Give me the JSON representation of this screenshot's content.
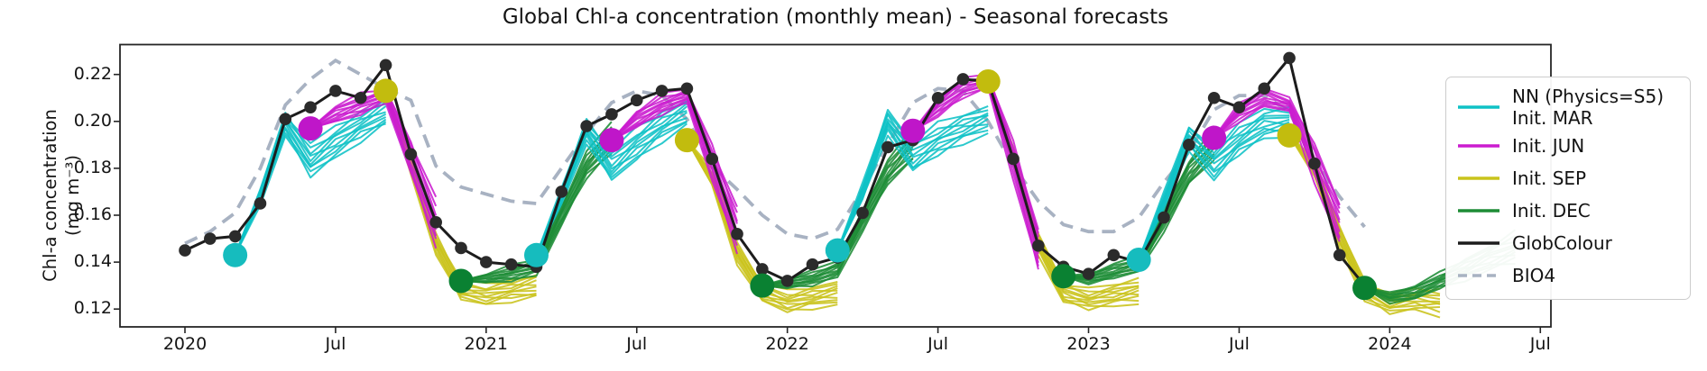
{
  "figure": {
    "title": "Global Chl-a concentration (monthly mean) - Seasonal forecasts",
    "ylabel_line1": "Chl-a concentration",
    "ylabel_line2": "(mg m⁻³)"
  },
  "chart_data": {
    "type": "line",
    "title": "Global Chl-a concentration (monthly mean) - Seasonal forecasts",
    "ylabel": "Chl-a concentration (mg m⁻³)",
    "ylim": [
      0.111,
      0.2335
    ],
    "grid": false,
    "legend_position": "right-outside",
    "yticks": [
      0.12,
      0.14,
      0.16,
      0.18,
      0.2,
      0.22
    ],
    "xticks": [
      {
        "label": "2020",
        "m": 0
      },
      {
        "label": "Jul",
        "m": 6
      },
      {
        "label": "2021",
        "m": 12
      },
      {
        "label": "Jul",
        "m": 18
      },
      {
        "label": "2022",
        "m": 24
      },
      {
        "label": "Jul",
        "m": 30
      },
      {
        "label": "2023",
        "m": 36
      },
      {
        "label": "Jul",
        "m": 42
      },
      {
        "label": "2024",
        "m": 48
      },
      {
        "label": "Jul",
        "m": 54
      }
    ],
    "months_note": "m = months since Jan 2020",
    "observations": {
      "name": "GlobColour",
      "color": "#1c1c1c",
      "dot_color": "#2b2b2b",
      "start_m": 0,
      "values": [
        0.145,
        0.15,
        0.151,
        0.165,
        0.201,
        0.206,
        0.213,
        0.21,
        0.224,
        0.186,
        0.157,
        0.146,
        0.14,
        0.139,
        0.138,
        0.17,
        0.198,
        0.203,
        0.209,
        0.213,
        0.214,
        0.184,
        0.152,
        0.137,
        0.132,
        0.139,
        0.142,
        0.161,
        0.189,
        0.192,
        0.21,
        0.218,
        0.217,
        0.184,
        0.147,
        0.138,
        0.135,
        0.143,
        0.14,
        0.159,
        0.19,
        0.21,
        0.206,
        0.214,
        0.227,
        0.182,
        0.143,
        0.13
      ]
    },
    "bio4": {
      "name": "BIO4",
      "color": "#a8b2c2",
      "style": "dashed",
      "start_m": 0,
      "values": [
        0.148,
        0.153,
        0.161,
        0.18,
        0.207,
        0.218,
        0.226,
        0.22,
        0.214,
        0.209,
        0.181,
        0.172,
        0.169,
        0.166,
        0.165,
        0.18,
        0.195,
        0.208,
        0.213,
        0.211,
        0.201,
        0.181,
        0.171,
        0.16,
        0.152,
        0.15,
        0.154,
        0.171,
        0.19,
        0.208,
        0.214,
        0.213,
        0.2,
        0.181,
        0.166,
        0.156,
        0.153,
        0.153,
        0.159,
        0.174,
        0.187,
        0.205,
        0.211,
        0.211,
        0.204,
        0.183,
        0.168,
        0.155
      ]
    },
    "forecast_groups": [
      {
        "name": "Init. MAR",
        "color": "#0fc2c6",
        "dot_color": "#16bcbe",
        "members": 10,
        "spread": [
          0,
          0.003,
          0.0045,
          0.0065,
          0.006,
          0.0055,
          0.0055
        ],
        "inits": [
          {
            "start_m": 2,
            "mean": [
              0.143,
              0.168,
              0.199,
              0.183,
              0.191,
              0.198,
              0.204
            ]
          },
          {
            "start_m": 14,
            "mean": [
              0.143,
              0.168,
              0.196,
              0.181,
              0.19,
              0.198,
              0.204
            ]
          },
          {
            "start_m": 26,
            "mean": [
              0.145,
              0.17,
              0.2,
              0.185,
              0.192,
              0.197,
              0.201
            ]
          },
          {
            "start_m": 38,
            "mean": [
              0.141,
              0.166,
              0.193,
              0.182,
              0.192,
              0.199,
              0.2
            ]
          }
        ]
      },
      {
        "name": "Init. JUN",
        "color": "#cb1ccf",
        "dot_color": "#bf16c9",
        "members": 10,
        "spread": [
          0,
          0.0035,
          0.004,
          0.0025,
          0.007,
          0.009
        ],
        "inits": [
          {
            "start_m": 5,
            "mean": [
              0.197,
              0.203,
              0.207,
              0.211,
              0.185,
              0.156
            ]
          },
          {
            "start_m": 17,
            "mean": [
              0.192,
              0.201,
              0.207,
              0.211,
              0.183,
              0.153
            ]
          },
          {
            "start_m": 29,
            "mean": [
              0.196,
              0.206,
              0.214,
              0.217,
              0.184,
              0.145
            ]
          },
          {
            "start_m": 41,
            "mean": [
              0.193,
              0.204,
              0.21,
              0.207,
              0.183,
              0.157
            ]
          }
        ]
      },
      {
        "name": "Init. SEP",
        "color": "#c9c31b",
        "dot_color": "#c2bc0e",
        "members": 10,
        "spread": [
          0,
          0.003,
          0.004,
          0.004,
          0.004,
          0.004,
          0.005
        ],
        "inits": [
          {
            "start_m": 8,
            "mean": [
              0.213,
              0.181,
              0.148,
              0.128,
              0.126,
              0.128,
              0.13
            ]
          },
          {
            "start_m": 20,
            "mean": [
              0.192,
              0.176,
              0.144,
              0.127,
              0.123,
              0.125,
              0.127
            ]
          },
          {
            "start_m": 32,
            "mean": [
              0.217,
              0.185,
              0.148,
              0.127,
              0.124,
              0.126,
              0.128
            ]
          },
          {
            "start_m": 44,
            "mean": [
              0.194,
              0.18,
              0.151,
              0.128,
              0.122,
              0.124,
              0.123
            ]
          }
        ]
      },
      {
        "name": "Init. DEC",
        "color": "#1d8c35",
        "dot_color": "#0a8132",
        "members": 10,
        "spread": [
          0,
          0.002,
          0.003,
          0.003,
          0.004,
          0.005,
          0.006
        ],
        "inits": [
          {
            "start_m": 11,
            "mean": [
              0.132,
              0.133,
              0.135,
              0.138,
              0.16,
              0.181,
              0.193
            ]
          },
          {
            "start_m": 23,
            "mean": [
              0.13,
              0.131,
              0.133,
              0.137,
              0.158,
              0.178,
              0.19
            ]
          },
          {
            "start_m": 35,
            "mean": [
              0.134,
              0.133,
              0.136,
              0.139,
              0.158,
              0.178,
              0.19
            ]
          },
          {
            "start_m": 47,
            "mean": [
              0.129,
              0.125,
              0.127,
              0.132,
              0.137,
              0.142,
              0.146
            ]
          }
        ]
      }
    ],
    "legend": {
      "entries": [
        {
          "label": "NN (Physics=S5)",
          "label2": "Init. MAR",
          "color": "#0fc2c6",
          "style": "solid"
        },
        {
          "label": "Init. JUN",
          "color": "#cb1ccf",
          "style": "solid"
        },
        {
          "label": "Init. SEP",
          "color": "#c9c31b",
          "style": "solid"
        },
        {
          "label": "Init. DEC",
          "color": "#1d8c35",
          "style": "solid"
        },
        {
          "label": "GlobColour",
          "color": "#1c1c1c",
          "style": "solid"
        },
        {
          "label": "BIO4",
          "color": "#a8b2c2",
          "style": "dashed"
        }
      ]
    }
  }
}
